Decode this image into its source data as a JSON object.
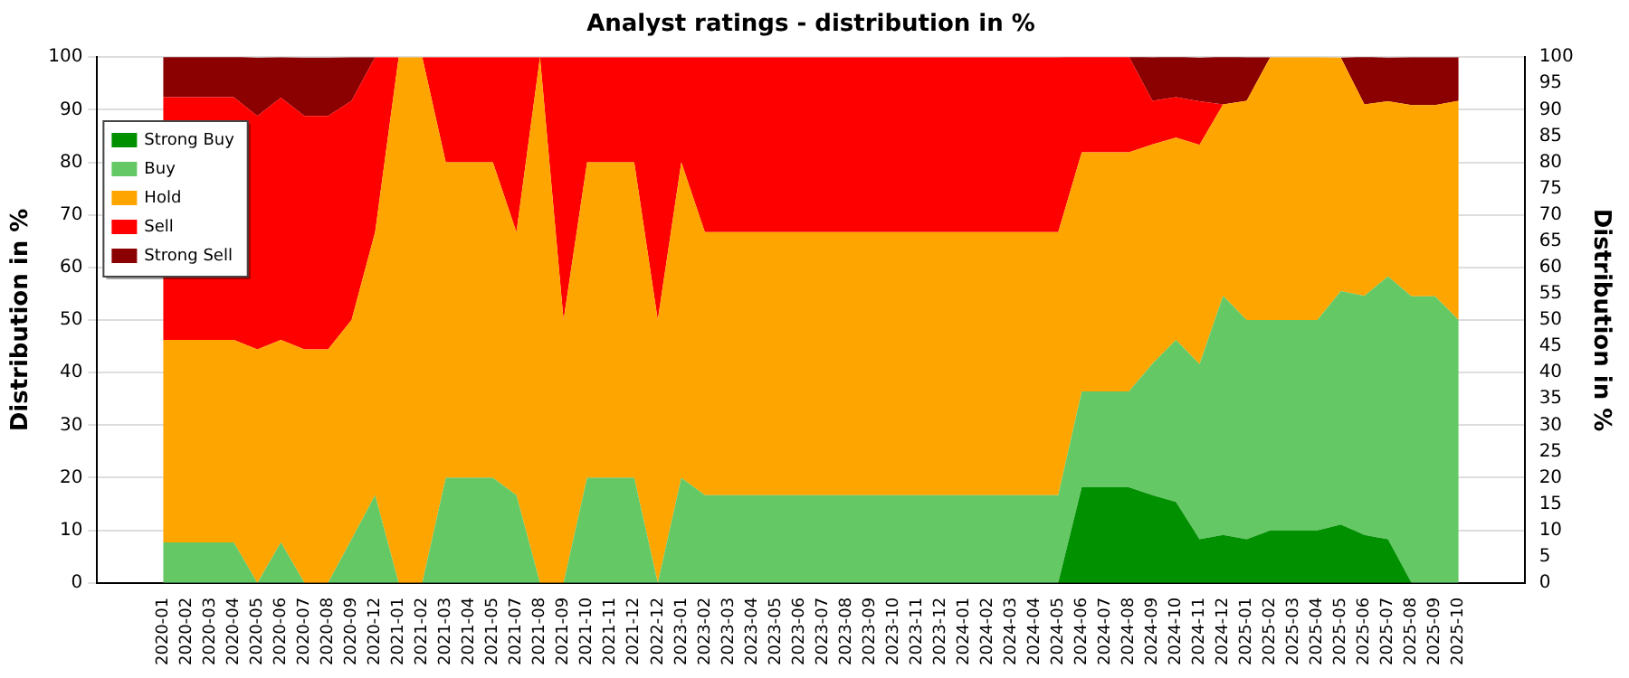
{
  "chart_data": {
    "type": "area",
    "stacked": true,
    "title": "Analyst ratings - distribution in %",
    "ylabel": "Distribution in %",
    "y2label": "Distribution in %",
    "categories": [
      "2020-01",
      "2020-02",
      "2020-03",
      "2020-04",
      "2020-05",
      "2020-06",
      "2020-07",
      "2020-08",
      "2020-09",
      "2020-12",
      "2021-01",
      "2021-02",
      "2021-03",
      "2021-04",
      "2021-05",
      "2021-07",
      "2021-08",
      "2021-09",
      "2021-10",
      "2021-11",
      "2021-12",
      "2022-12",
      "2023-01",
      "2023-02",
      "2023-03",
      "2023-04",
      "2023-05",
      "2023-06",
      "2023-07",
      "2023-08",
      "2023-09",
      "2023-10",
      "2023-11",
      "2023-12",
      "2024-01",
      "2024-02",
      "2024-03",
      "2024-04",
      "2024-05",
      "2024-06",
      "2024-07",
      "2024-08",
      "2024-09",
      "2024-10",
      "2024-11",
      "2024-12",
      "2025-01",
      "2025-02",
      "2025-03",
      "2025-04",
      "2025-05",
      "2025-06",
      "2025-07",
      "2025-08",
      "2025-09",
      "2025-10"
    ],
    "series": [
      {
        "name": "Strong Buy",
        "color": "#009000",
        "values": [
          0,
          0,
          0,
          0,
          0,
          0,
          0,
          0,
          0,
          0,
          0,
          0,
          0,
          0,
          0,
          0,
          0,
          0,
          0,
          0,
          0,
          0,
          0,
          0,
          0,
          0,
          0,
          0,
          0,
          0,
          0,
          0,
          0,
          0,
          0,
          0,
          0,
          0,
          0,
          18.2,
          18.2,
          18.2,
          16.7,
          15.4,
          8.3,
          9.1,
          8.3,
          10,
          10,
          10,
          11.1,
          9.1,
          8.3,
          0,
          0,
          0
        ]
      },
      {
        "name": "Buy",
        "color": "#64c864",
        "values": [
          7.7,
          7.7,
          7.7,
          7.7,
          0,
          7.7,
          0,
          0,
          8.3,
          16.7,
          0,
          0,
          20,
          20,
          20,
          16.7,
          0,
          0,
          20,
          20,
          20,
          0,
          20,
          16.7,
          16.7,
          16.7,
          16.7,
          16.7,
          16.7,
          16.7,
          16.7,
          16.7,
          16.7,
          16.7,
          16.7,
          16.7,
          16.7,
          16.7,
          16.7,
          18.2,
          18.2,
          18.2,
          25,
          30.8,
          33.3,
          45.5,
          41.7,
          40,
          40,
          40,
          44.4,
          45.5,
          50,
          54.5,
          54.5,
          50
        ]
      },
      {
        "name": "Hold",
        "color": "#ffa500",
        "values": [
          38.5,
          38.5,
          38.5,
          38.5,
          44.4,
          38.5,
          44.4,
          44.4,
          41.7,
          50,
          100,
          100,
          60,
          60,
          60,
          50,
          100,
          50,
          60,
          60,
          60,
          50,
          60,
          50,
          50,
          50,
          50,
          50,
          50,
          50,
          50,
          50,
          50,
          50,
          50,
          50,
          50,
          50,
          50,
          45.5,
          45.5,
          45.5,
          41.7,
          38.5,
          41.7,
          36.4,
          41.7,
          50,
          50,
          50,
          44.4,
          36.4,
          33.3,
          36.4,
          36.4,
          41.7
        ]
      },
      {
        "name": "Sell",
        "color": "#ff0000",
        "values": [
          46.2,
          46.2,
          46.2,
          46.2,
          44.4,
          46.1,
          44.4,
          44.4,
          41.7,
          33.3,
          0,
          0,
          20,
          20,
          20,
          33.3,
          0,
          50,
          20,
          20,
          20,
          50,
          20,
          33.3,
          33.3,
          33.3,
          33.3,
          33.3,
          33.3,
          33.3,
          33.3,
          33.3,
          33.3,
          33.3,
          33.3,
          33.3,
          33.3,
          33.3,
          33.3,
          18.2,
          18.2,
          18.2,
          8.3,
          7.7,
          8.3,
          0,
          0,
          0,
          0,
          0,
          0,
          0,
          0,
          0,
          0,
          0
        ]
      },
      {
        "name": "Strong Sell",
        "color": "#8b0000",
        "values": [
          7.7,
          7.7,
          7.7,
          7.7,
          11.1,
          7.7,
          11.1,
          11.1,
          8.3,
          0,
          0,
          0,
          0,
          0,
          0,
          0,
          0,
          0,
          0,
          0,
          0,
          0,
          0,
          0,
          0,
          0,
          0,
          0,
          0,
          0,
          0,
          0,
          0,
          0,
          0,
          0,
          0,
          0,
          0,
          0,
          0,
          0,
          8.3,
          7.7,
          8.3,
          9.1,
          8.3,
          0,
          0,
          0,
          0,
          9.1,
          8.3,
          9.1,
          9.1,
          8.3
        ]
      }
    ],
    "ylim": [
      0,
      100
    ],
    "yticks": [
      0,
      10,
      20,
      30,
      40,
      50,
      60,
      70,
      80,
      90,
      100
    ],
    "y2lim": [
      0,
      100
    ],
    "y2ticks": [
      0,
      5,
      10,
      15,
      20,
      25,
      30,
      35,
      40,
      45,
      50,
      55,
      60,
      65,
      70,
      75,
      80,
      85,
      90,
      95,
      100
    ],
    "grid": "y",
    "legend": "top left"
  }
}
